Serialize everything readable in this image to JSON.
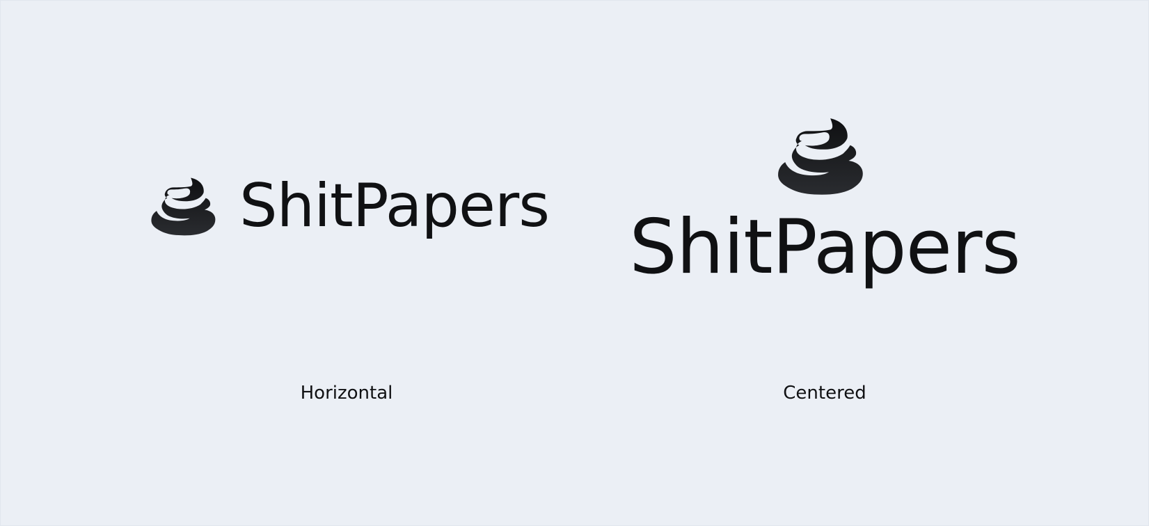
{
  "brand": {
    "name": "ShitPapers",
    "text_color": "#101113",
    "mark_color_top": "#0f1012",
    "mark_color_bottom": "#2a2c30",
    "background": "#ebeff5"
  },
  "variants": [
    {
      "label": "Horizontal",
      "icon": "poop-pile-icon"
    },
    {
      "label": "Centered",
      "icon": "poop-pile-icon"
    }
  ]
}
